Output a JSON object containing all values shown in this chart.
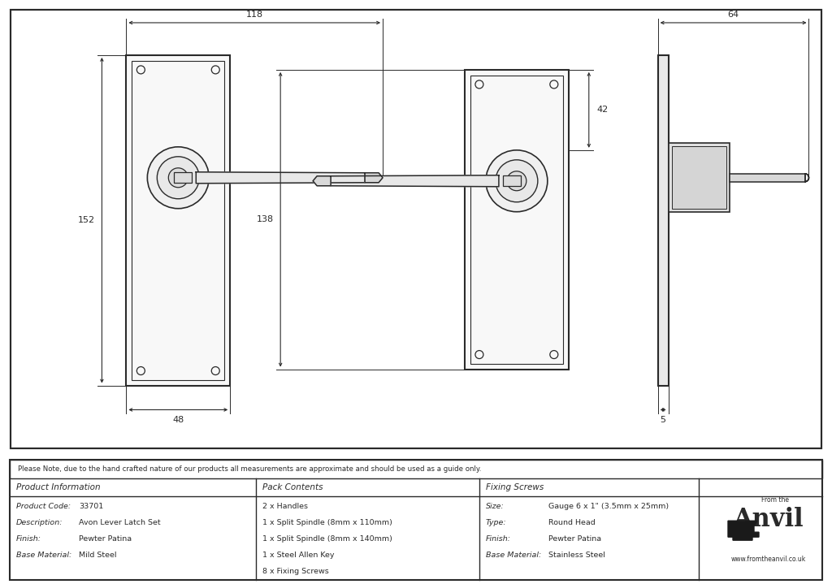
{
  "bg_color": "#ffffff",
  "line_color": "#2a2a2a",
  "dim_color": "#2a2a2a",
  "fill_color": "#f8f8f8",
  "note_text": "Please Note, due to the hand crafted nature of our products all measurements are approximate and should be used as a guide only.",
  "product_info": {
    "header": "Product Information",
    "rows": [
      [
        "Product Code:",
        "33701"
      ],
      [
        "Description:",
        "Avon Lever Latch Set"
      ],
      [
        "Finish:",
        "Pewter Patina"
      ],
      [
        "Base Material:",
        "Mild Steel"
      ]
    ]
  },
  "pack_contents": {
    "header": "Pack Contents",
    "rows": [
      "2 x Handles",
      "1 x Split Spindle (8mm x 110mm)",
      "1 x Split Spindle (8mm x 140mm)",
      "1 x Steel Allen Key",
      "8 x Fixing Screws"
    ]
  },
  "fixing_screws": {
    "header": "Fixing Screws",
    "rows": [
      [
        "Size:",
        "Gauge 6 x 1\" (3.5mm x 25mm)"
      ],
      [
        "Type:",
        "Round Head"
      ],
      [
        "Finish:",
        "Pewter Patina"
      ],
      [
        "Base Material:",
        "Stainless Steel"
      ]
    ]
  }
}
